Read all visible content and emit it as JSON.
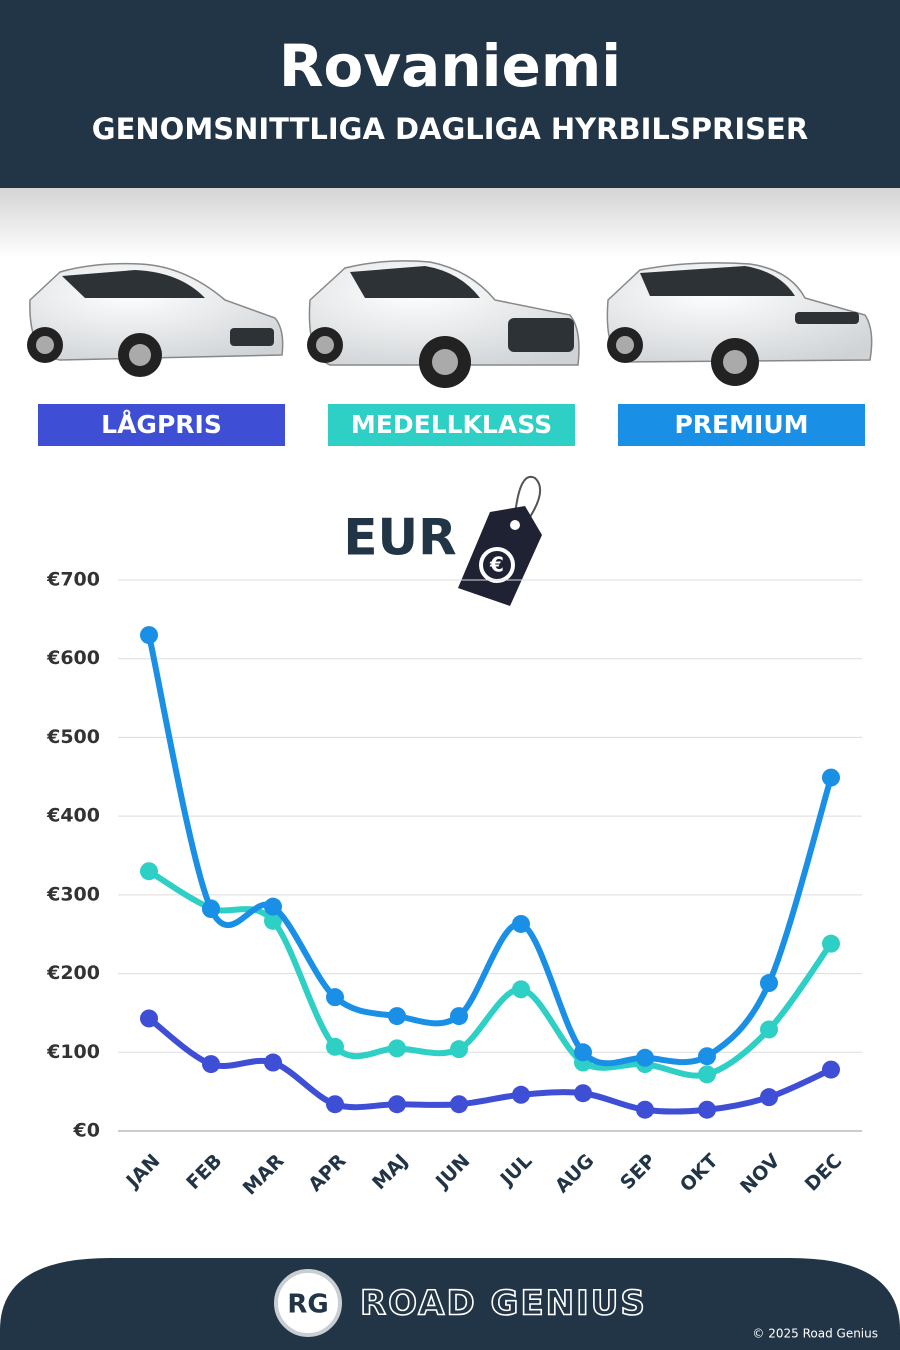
{
  "chart_data": {
    "type": "line",
    "title": "Rovaniemi",
    "subtitle": "GENOMSNITTLIGA DAGLIGA HYRBILSPRISER",
    "unit_label": "EUR",
    "categories": [
      "JAN",
      "FEB",
      "MAR",
      "APR",
      "MAJ",
      "JUN",
      "JUL",
      "AUG",
      "SEP",
      "OKT",
      "NOV",
      "DEC"
    ],
    "series": [
      {
        "name": "LÅGPRIS",
        "color": "#3e4fd6",
        "values": [
          143,
          85,
          87,
          34,
          34,
          34,
          46,
          48,
          27,
          27,
          43,
          78
        ]
      },
      {
        "name": "MEDELLKLASS",
        "color": "#2ecfc4",
        "values": [
          330,
          283,
          267,
          107,
          105,
          104,
          180,
          87,
          85,
          72,
          129,
          238
        ]
      },
      {
        "name": "PREMIUM",
        "color": "#1a8fe6",
        "values": [
          630,
          282,
          285,
          170,
          146,
          146,
          263,
          100,
          93,
          95,
          188,
          449
        ]
      }
    ],
    "ylim": [
      0,
      700
    ],
    "yticks": [
      {
        "value": 0,
        "label": "€0"
      },
      {
        "value": 100,
        "label": "€100"
      },
      {
        "value": 200,
        "label": "€200"
      },
      {
        "value": 300,
        "label": "€300"
      },
      {
        "value": 400,
        "label": "€400"
      },
      {
        "value": 500,
        "label": "€500"
      },
      {
        "value": 600,
        "label": "€600"
      },
      {
        "value": 700,
        "label": "€700"
      }
    ],
    "grid": true
  },
  "branding": {
    "logo": "RG",
    "name": "ROAD GENIUS",
    "copyright": "© 2025 Road Genius"
  }
}
